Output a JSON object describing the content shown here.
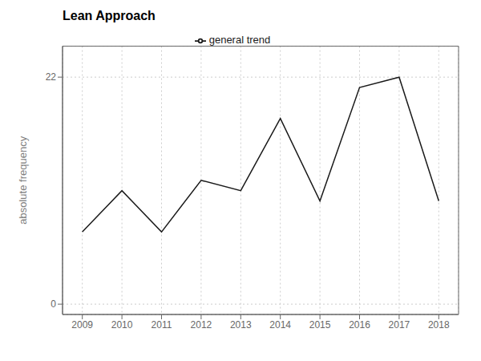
{
  "chart_data": {
    "type": "line",
    "title": "Lean Approach",
    "ylabel": "absolute frequency",
    "x": [
      2009,
      2010,
      2011,
      2012,
      2013,
      2014,
      2015,
      2016,
      2017,
      2018
    ],
    "series": [
      {
        "name": "general trend",
        "color": "#1a1a1a",
        "values": [
          7,
          11,
          7,
          12,
          11,
          18,
          10,
          21,
          22,
          10
        ]
      }
    ],
    "xlim": [
      2008.5,
      2018.5
    ],
    "xticks": [
      2009,
      2010,
      2011,
      2012,
      2013,
      2014,
      2015,
      2016,
      2017,
      2018
    ],
    "ylim": [
      -1,
      25
    ],
    "yticks": [
      0,
      22
    ],
    "grid": true,
    "legend": "top"
  }
}
